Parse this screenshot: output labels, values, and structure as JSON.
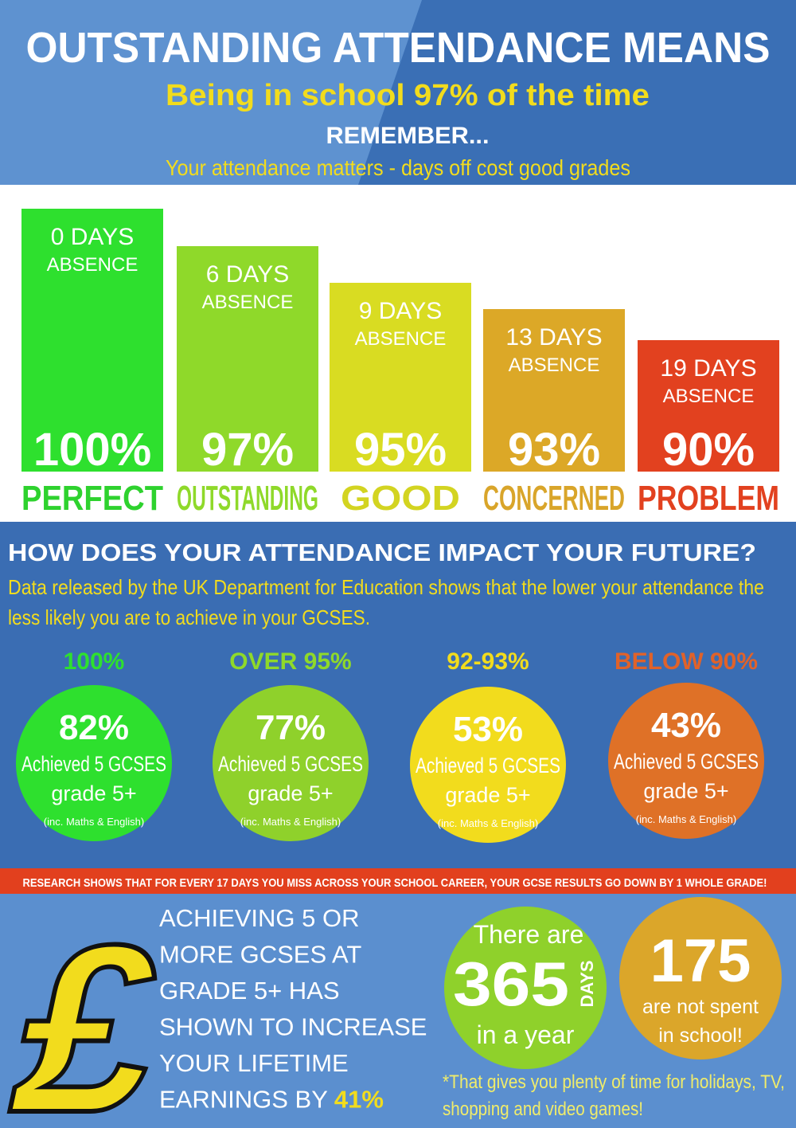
{
  "header": {
    "title": "OUTSTANDING ATTENDANCE MEANS",
    "subtitle": "Being in school 97% of the time",
    "remember": "REMEMBER...",
    "tagline": "Your attendance matters - days off cost good grades"
  },
  "bars": [
    {
      "days": "0 DAYS",
      "absence": "ABSENCE",
      "percent": "100%",
      "label": "PERFECT"
    },
    {
      "days": "6 DAYS",
      "absence": "ABSENCE",
      "percent": "97%",
      "label": "OUTSTANDING"
    },
    {
      "days": "9 DAYS",
      "absence": "ABSENCE",
      "percent": "95%",
      "label": "GOOD"
    },
    {
      "days": "13 DAYS",
      "absence": "ABSENCE",
      "percent": "93%",
      "label": "CONCERNED"
    },
    {
      "days": "19 DAYS",
      "absence": "ABSENCE",
      "percent": "90%",
      "label": "PROBLEM"
    }
  ],
  "impact": {
    "heading": "HOW DOES YOUR ATTENDANCE IMPACT YOUR FUTURE?",
    "text": [
      "Data released by the UK Department for Education shows that the lower your attendance the",
      "less likely you are to achieve in your GCSES."
    ],
    "circles": [
      {
        "range": "100%",
        "value": "82%",
        "achieved": "Achieved 5 GCSES",
        "grade": "grade 5+",
        "note": "(inc. Maths & English)"
      },
      {
        "range": "OVER 95%",
        "value": "77%",
        "achieved": "Achieved 5 GCSES",
        "grade": "grade 5+",
        "note": "(inc. Maths & English)"
      },
      {
        "range": "92-93%",
        "value": "53%",
        "achieved": "Achieved 5 GCSES",
        "grade": "grade 5+",
        "note": "(inc. Maths & English)"
      },
      {
        "range": "BELOW 90%",
        "value": "43%",
        "achieved": "Achieved 5 GCSES",
        "grade": "grade 5+",
        "note": "(inc. Maths & English)"
      }
    ]
  },
  "banner": "RESEARCH SHOWS THAT FOR EVERY 17 DAYS YOU MISS ACROSS YOUR SCHOOL CAREER, YOUR GCSE RESULTS GO DOWN BY 1 WHOLE GRADE!",
  "earnings": {
    "lines": [
      "ACHIEVING 5 OR",
      "MORE GCSES AT",
      "GRADE 5+ HAS",
      "SHOWN TO INCREASE",
      "YOUR LIFETIME",
      "EARNINGS BY"
    ],
    "highlight": "41%",
    "symbol": "£"
  },
  "year": {
    "there_are": "There are",
    "number": "365",
    "unit": "DAYS",
    "in_a_year": "in a year"
  },
  "off": {
    "number": "175",
    "line1": "are not spent",
    "line2": "in school!"
  },
  "footnote": [
    "*That gives you plenty of time for holidays, TV,",
    "shopping and video games!"
  ]
}
